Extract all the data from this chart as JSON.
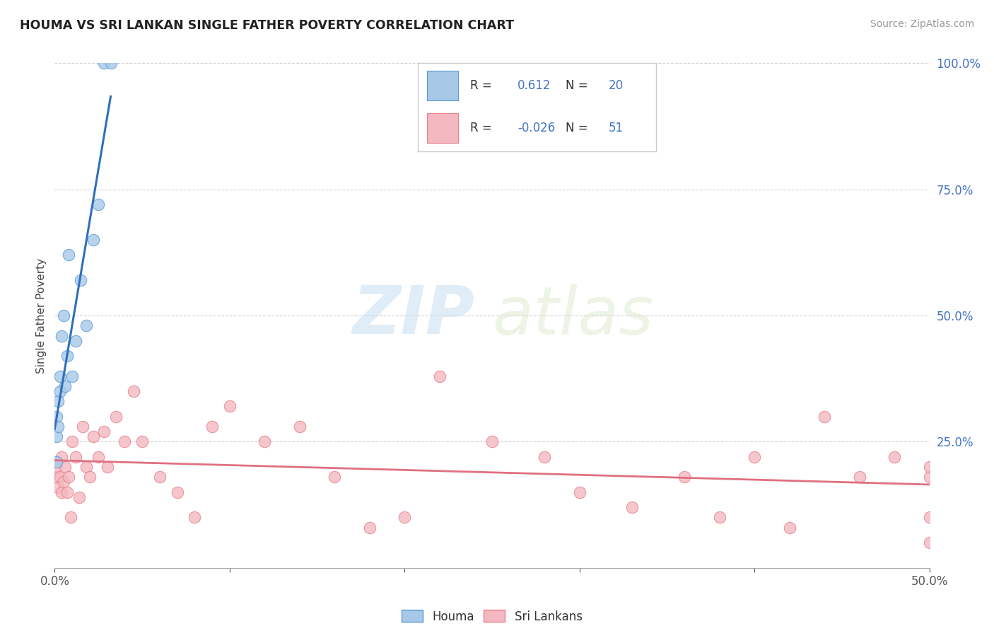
{
  "title": "HOUMA VS SRI LANKAN SINGLE FATHER POVERTY CORRELATION CHART",
  "source": "Source: ZipAtlas.com",
  "ylabel": "Single Father Poverty",
  "xlim": [
    0.0,
    0.5
  ],
  "ylim": [
    0.0,
    1.0
  ],
  "xtick_positions": [
    0.0,
    0.1,
    0.2,
    0.3,
    0.4,
    0.5
  ],
  "xtick_labels_edge": [
    "0.0%",
    "",
    "",
    "",
    "",
    "50.0%"
  ],
  "yticks": [
    0.0,
    0.25,
    0.5,
    0.75,
    1.0
  ],
  "ytick_labels": [
    "",
    "25.0%",
    "50.0%",
    "75.0%",
    "100.0%"
  ],
  "houma_color": "#a8c8e8",
  "houma_edge_color": "#5b9bd5",
  "srilankan_color": "#f4b8c1",
  "srilankan_edge_color": "#e8808a",
  "trend_houma_color": "#3070b8",
  "trend_srilankan_color": "#e07080",
  "legend_R_houma": "0.612",
  "legend_N_houma": "20",
  "legend_R_sri": "-0.026",
  "legend_N_sri": "51",
  "watermark_zip": "ZIP",
  "watermark_atlas": "atlas",
  "background_color": "#ffffff",
  "houma_x": [
    0.001,
    0.001,
    0.001,
    0.002,
    0.002,
    0.003,
    0.003,
    0.004,
    0.005,
    0.006,
    0.007,
    0.008,
    0.01,
    0.012,
    0.015,
    0.018,
    0.022,
    0.025,
    0.028,
    0.032
  ],
  "houma_y": [
    0.21,
    0.26,
    0.3,
    0.28,
    0.33,
    0.35,
    0.38,
    0.46,
    0.5,
    0.36,
    0.42,
    0.62,
    0.38,
    0.45,
    0.57,
    0.48,
    0.65,
    0.72,
    1.0,
    1.0
  ],
  "sri_x": [
    0.001,
    0.001,
    0.002,
    0.003,
    0.004,
    0.004,
    0.005,
    0.006,
    0.007,
    0.008,
    0.009,
    0.01,
    0.012,
    0.014,
    0.016,
    0.018,
    0.02,
    0.022,
    0.025,
    0.028,
    0.03,
    0.035,
    0.04,
    0.045,
    0.05,
    0.06,
    0.07,
    0.08,
    0.09,
    0.1,
    0.12,
    0.14,
    0.16,
    0.18,
    0.2,
    0.22,
    0.25,
    0.28,
    0.3,
    0.33,
    0.36,
    0.38,
    0.4,
    0.42,
    0.44,
    0.46,
    0.48,
    0.5,
    0.5,
    0.5,
    0.5
  ],
  "sri_y": [
    0.18,
    0.2,
    0.16,
    0.18,
    0.15,
    0.22,
    0.17,
    0.2,
    0.15,
    0.18,
    0.1,
    0.25,
    0.22,
    0.14,
    0.28,
    0.2,
    0.18,
    0.26,
    0.22,
    0.27,
    0.2,
    0.3,
    0.25,
    0.35,
    0.25,
    0.18,
    0.15,
    0.1,
    0.28,
    0.32,
    0.25,
    0.28,
    0.18,
    0.08,
    0.1,
    0.38,
    0.25,
    0.22,
    0.15,
    0.12,
    0.18,
    0.1,
    0.22,
    0.08,
    0.3,
    0.18,
    0.22,
    0.18,
    0.05,
    0.1,
    0.2
  ]
}
